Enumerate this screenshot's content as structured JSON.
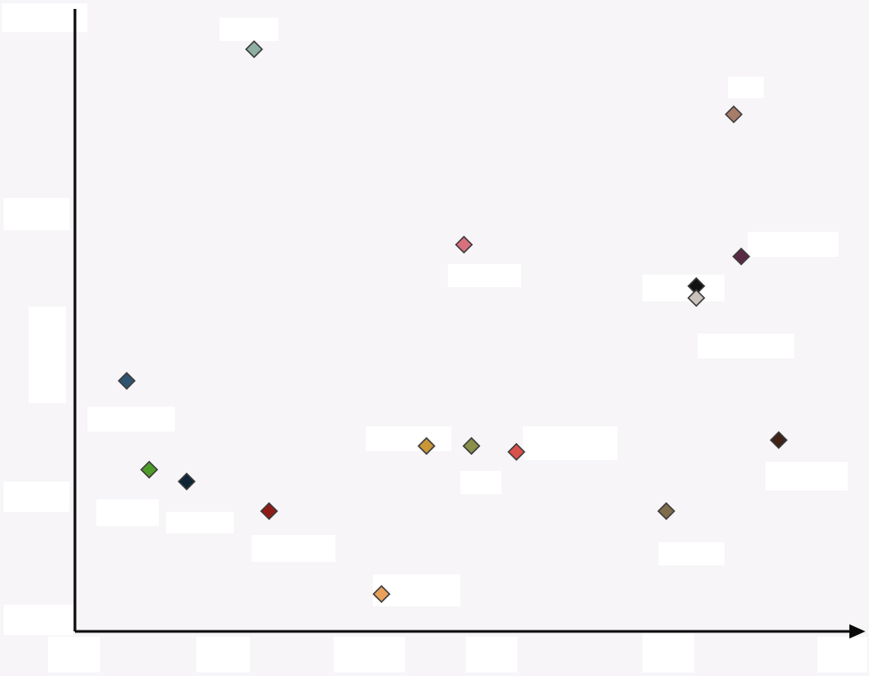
{
  "chart_data": {
    "type": "scatter",
    "title": "",
    "xlabel": "",
    "ylabel": "",
    "xlim": [
      0,
      100
    ],
    "ylim": [
      0,
      100
    ],
    "grid": false,
    "legend": "none",
    "marker": "diamond",
    "points": [
      {
        "x": 22,
        "y": 95,
        "color": "#8fb0a0"
      },
      {
        "x": 86,
        "y": 84,
        "color": "#a87c6a"
      },
      {
        "x": 50,
        "y": 62,
        "color": "#d9707f"
      },
      {
        "x": 87,
        "y": 60,
        "color": "#5a2a44"
      },
      {
        "x": 81,
        "y": 55,
        "color": "#111111"
      },
      {
        "x": 81,
        "y": 53,
        "color": "#c9c3bc"
      },
      {
        "x": 5,
        "y": 39,
        "color": "#2f5470"
      },
      {
        "x": 45,
        "y": 28,
        "color": "#c99638"
      },
      {
        "x": 51,
        "y": 28,
        "color": "#8a8f4a"
      },
      {
        "x": 57,
        "y": 27,
        "color": "#d9514b"
      },
      {
        "x": 92,
        "y": 29,
        "color": "#3e2316"
      },
      {
        "x": 8,
        "y": 24,
        "color": "#4f9b2a"
      },
      {
        "x": 13,
        "y": 22,
        "color": "#0f2535"
      },
      {
        "x": 24,
        "y": 17,
        "color": "#8e1b16"
      },
      {
        "x": 77,
        "y": 17,
        "color": "#7e6c4a"
      },
      {
        "x": 39,
        "y": 3,
        "color": "#e8a05c"
      }
    ]
  },
  "colors": {
    "background": "#f7f5f8",
    "axis": "#0a0a0a"
  }
}
